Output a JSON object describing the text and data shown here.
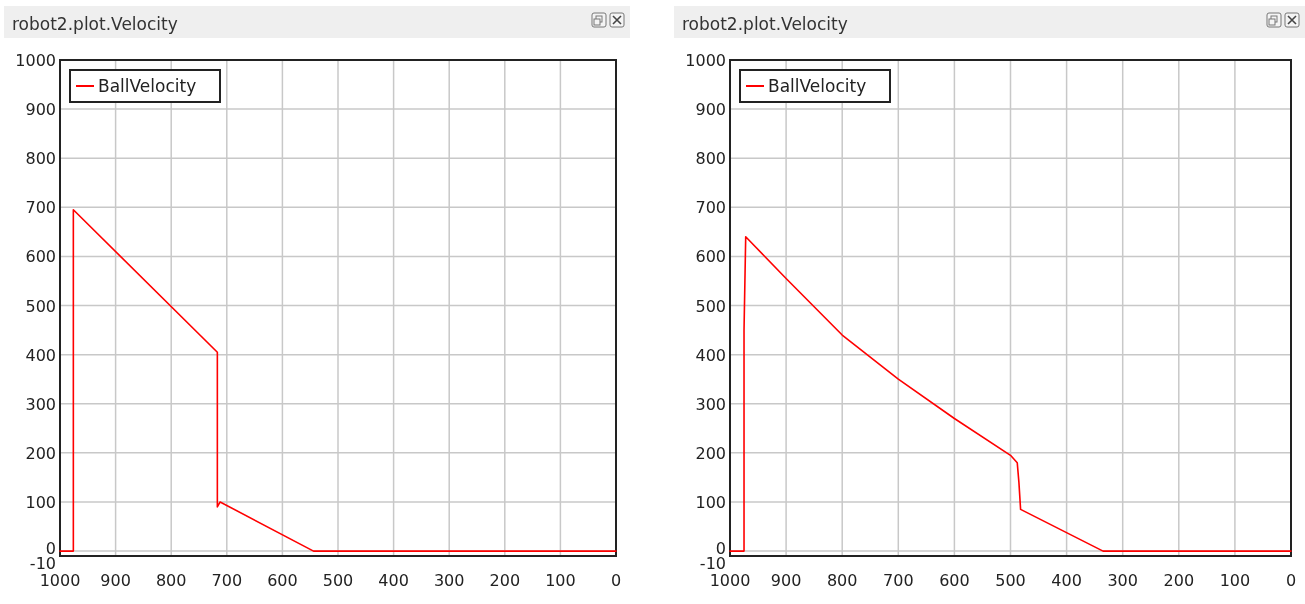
{
  "chart_data": [
    {
      "type": "line",
      "title": "robot2.plot.Velocity",
      "x": [
        1000,
        976,
        976,
        717,
        717,
        712,
        544,
        0
      ],
      "series": [
        {
          "name": "BallVelocity",
          "color": "#ff0000",
          "values": [
            0,
            0,
            695,
            405,
            90,
            100,
            0,
            0
          ]
        }
      ],
      "xlim": [
        1000,
        0
      ],
      "xticks": [
        1000,
        900,
        800,
        700,
        600,
        500,
        400,
        300,
        200,
        100,
        0
      ],
      "ylim": [
        -10,
        1000
      ],
      "yticks": [
        -10,
        0,
        100,
        200,
        300,
        400,
        500,
        600,
        700,
        800,
        900,
        1000
      ],
      "grid": true,
      "legend": "top left",
      "marker": "none",
      "line_style": "solid"
    },
    {
      "type": "line",
      "title": "robot2.plot.Velocity",
      "x": [
        1000,
        975,
        975,
        972,
        900,
        800,
        700,
        600,
        500,
        488,
        485,
        482,
        335,
        0
      ],
      "series": [
        {
          "name": "BallVelocity",
          "color": "#ff0000",
          "values": [
            0,
            0,
            450,
            640,
            555,
            440,
            350,
            270,
            195,
            180,
            140,
            85,
            0,
            0
          ]
        }
      ],
      "xlim": [
        1000,
        0
      ],
      "xticks": [
        1000,
        900,
        800,
        700,
        600,
        500,
        400,
        300,
        200,
        100,
        0
      ],
      "ylim": [
        -10,
        1000
      ],
      "yticks": [
        -10,
        0,
        100,
        200,
        300,
        400,
        500,
        600,
        700,
        800,
        900,
        1000
      ],
      "grid": true,
      "legend": "top left",
      "marker": "none",
      "line_style": "solid"
    }
  ]
}
